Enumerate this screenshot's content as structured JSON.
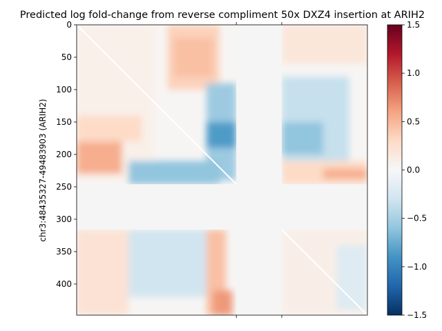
{
  "chart_data": {
    "type": "heatmap",
    "title": "Predicted log fold-change from reverse compliment 50x DXZ4 insertion at ARIH2",
    "ylabel": "chr3:48435327-49483903 (ARIH2)",
    "xlabel": "",
    "ylim": [
      448,
      0
    ],
    "yticks": [
      0,
      50,
      100,
      150,
      200,
      250,
      300,
      350,
      400
    ],
    "xticks_unlabeled": [
      246,
      316
    ],
    "masked_bins": {
      "start": 246,
      "end": 316,
      "color": "#f5f5f5"
    },
    "colorbar": {
      "cmap": "RdBu_r",
      "vmin": -1.5,
      "vmax": 1.5,
      "ticks": [
        -1.5,
        -1.0,
        -0.5,
        0.0,
        0.5,
        1.0,
        1.5
      ]
    },
    "blocks": [
      {
        "rows": [
          0,
          100
        ],
        "cols": [
          140,
          220
        ],
        "value": 0.35
      },
      {
        "rows": [
          20,
          80
        ],
        "cols": [
          150,
          210
        ],
        "value": 0.45
      },
      {
        "rows": [
          0,
          240
        ],
        "cols": [
          0,
          120
        ],
        "value": 0.08
      },
      {
        "rows": [
          0,
          60
        ],
        "cols": [
          316,
          448
        ],
        "value": 0.18
      },
      {
        "rows": [
          90,
          240
        ],
        "cols": [
          200,
          246
        ],
        "value": -0.55
      },
      {
        "rows": [
          150,
          190
        ],
        "cols": [
          200,
          246
        ],
        "value": -0.85
      },
      {
        "rows": [
          80,
          220
        ],
        "cols": [
          316,
          420
        ],
        "value": -0.35
      },
      {
        "rows": [
          150,
          200
        ],
        "cols": [
          316,
          380
        ],
        "value": -0.6
      },
      {
        "rows": [
          180,
          230
        ],
        "cols": [
          0,
          70
        ],
        "value": 0.55
      },
      {
        "rows": [
          140,
          180
        ],
        "cols": [
          0,
          100
        ],
        "value": 0.3
      },
      {
        "rows": [
          210,
          246
        ],
        "cols": [
          80,
          220
        ],
        "value": -0.6
      },
      {
        "rows": [
          210,
          246
        ],
        "cols": [
          316,
          448
        ],
        "value": 0.3
      },
      {
        "rows": [
          222,
          238
        ],
        "cols": [
          380,
          448
        ],
        "value": 0.55
      },
      {
        "rows": [
          316,
          448
        ],
        "cols": [
          0,
          80
        ],
        "value": 0.22
      },
      {
        "rows": [
          316,
          420
        ],
        "cols": [
          80,
          200
        ],
        "value": -0.3
      },
      {
        "rows": [
          316,
          448
        ],
        "cols": [
          200,
          230
        ],
        "value": 0.45
      },
      {
        "rows": [
          410,
          448
        ],
        "cols": [
          210,
          240
        ],
        "value": 0.65
      },
      {
        "rows": [
          316,
          448
        ],
        "cols": [
          316,
          448
        ],
        "value": 0.1
      },
      {
        "rows": [
          340,
          440
        ],
        "cols": [
          400,
          448
        ],
        "value": -0.2
      }
    ]
  }
}
